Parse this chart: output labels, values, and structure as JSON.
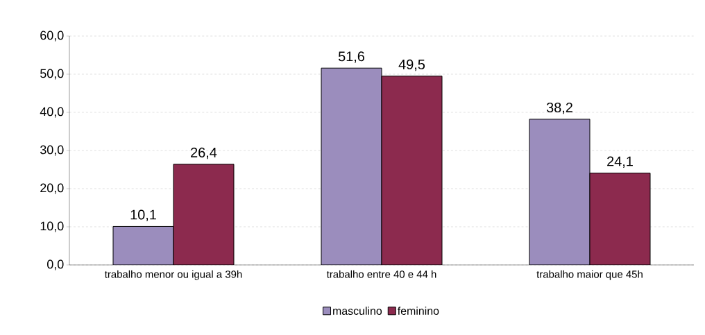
{
  "chart_data": {
    "type": "bar",
    "categories": [
      "trabalho menor ou igual a 39h",
      "trabalho entre 40 e 44 h",
      "trabalho maior que 45h"
    ],
    "series": [
      {
        "name": "masculino",
        "color": "#9b8dbd",
        "values": [
          10.1,
          51.6,
          38.2
        ],
        "value_labels": [
          "10,1",
          "51,6",
          "38,2"
        ]
      },
      {
        "name": "feminino",
        "color": "#8c2a4e",
        "values": [
          26.4,
          49.5,
          24.1
        ],
        "value_labels": [
          "26,4",
          "49,5",
          "24,1"
        ]
      }
    ],
    "ylim": [
      0,
      60
    ],
    "yticks": [
      {
        "value": 0,
        "label": "0,0"
      },
      {
        "value": 10,
        "label": "10,0"
      },
      {
        "value": 20,
        "label": "20,0"
      },
      {
        "value": 30,
        "label": "30,0"
      },
      {
        "value": 40,
        "label": "40,0"
      },
      {
        "value": 50,
        "label": "50,0"
      },
      {
        "value": 60,
        "label": "60,0"
      }
    ],
    "grid": "y",
    "legend": "bottom"
  }
}
